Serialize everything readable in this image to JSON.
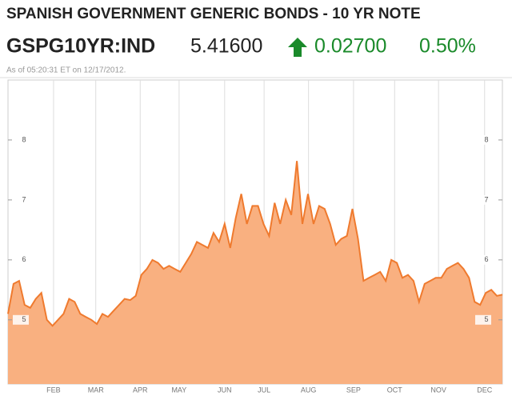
{
  "header": {
    "title": "SPANISH GOVERNMENT GENERIC BONDS - 10 YR NOTE",
    "ticker": "GSPG10YR:IND",
    "price": "5.41600",
    "change": "0.02700",
    "change_pct": "0.50%",
    "timestamp": "As of 05:20:31 ET on 12/17/2012."
  },
  "chart_data": {
    "type": "area",
    "color": "#f9b080",
    "line_color": "#ef7a2e",
    "values": [
      5.1,
      5.6,
      5.65,
      5.25,
      5.2,
      5.35,
      5.45,
      5.0,
      4.9,
      5.0,
      5.1,
      5.35,
      5.3,
      5.1,
      5.05,
      5.0,
      4.93,
      5.1,
      5.05,
      5.15,
      5.25,
      5.35,
      5.33,
      5.4,
      5.75,
      5.85,
      6.0,
      5.95,
      5.85,
      5.9,
      5.85,
      5.8,
      5.95,
      6.1,
      6.3,
      6.25,
      6.2,
      6.45,
      6.3,
      6.6,
      6.2,
      6.7,
      7.1,
      6.6,
      6.9,
      6.9,
      6.6,
      6.4,
      6.95,
      6.6,
      7.0,
      6.75,
      7.65,
      6.6,
      7.1,
      6.6,
      6.9,
      6.85,
      6.6,
      6.25,
      6.35,
      6.4,
      6.85,
      6.35,
      5.65,
      5.7,
      5.75,
      5.8,
      5.65,
      6.0,
      5.95,
      5.7,
      5.75,
      5.65,
      5.3,
      5.6,
      5.65,
      5.7,
      5.7,
      5.85,
      5.9,
      5.95,
      5.85,
      5.7,
      5.3,
      5.25,
      5.45,
      5.5,
      5.4,
      5.42
    ],
    "xlim": [
      0,
      89
    ],
    "xticks": [
      {
        "value": 8.2,
        "label": "FEB"
      },
      {
        "value": 15.8,
        "label": "MAR"
      },
      {
        "value": 23.8,
        "label": "APR"
      },
      {
        "value": 30.8,
        "label": "MAY"
      },
      {
        "value": 39.0,
        "label": "JUN"
      },
      {
        "value": 46.1,
        "label": "JUL"
      },
      {
        "value": 54.1,
        "label": "AUG"
      },
      {
        "value": 62.2,
        "label": "SEP"
      },
      {
        "value": 69.6,
        "label": "OCT"
      },
      {
        "value": 77.5,
        "label": "NOV"
      },
      {
        "value": 85.8,
        "label": "DEC"
      }
    ],
    "ylim": [
      3.93,
      9.0
    ],
    "yticks": [
      5,
      6,
      7,
      8
    ],
    "grid": true
  }
}
